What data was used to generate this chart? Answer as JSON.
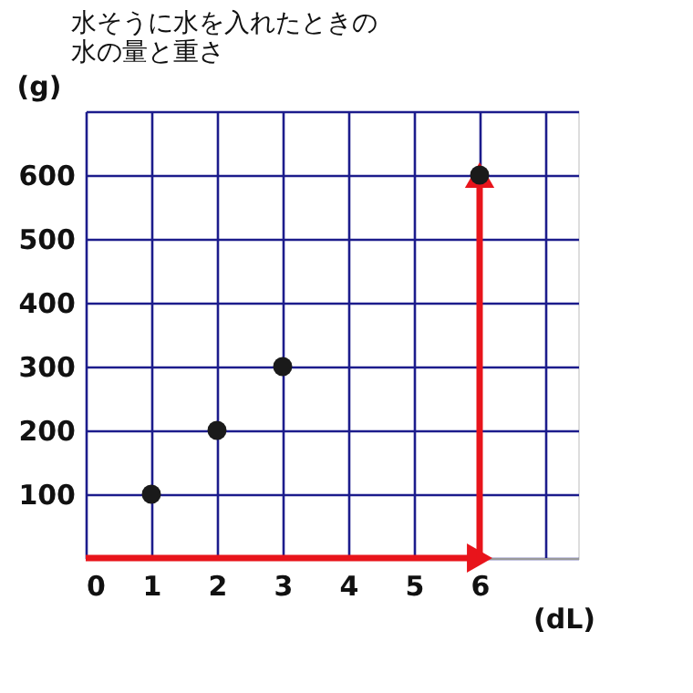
{
  "chart_data": {
    "type": "scatter",
    "title": "水そうに水を入れたときの水の量と重さ",
    "xlabel": "(dL)",
    "ylabel": "(g)",
    "series": [
      {
        "color": "#1a1a1a",
        "x": [
          1,
          2,
          3,
          6
        ],
        "values": [
          100,
          200,
          300,
          600
        ]
      },
      {
        "type": "line",
        "color": "#e8141b",
        "marker": "triangle",
        "x": [
          0,
          6
        ],
        "values": [
          0,
          0
        ]
      },
      {
        "type": "line",
        "color": "#e8141b",
        "marker": "triangle",
        "x": [
          6,
          6
        ],
        "values": [
          0,
          600
        ]
      }
    ],
    "marker": "circle",
    "grid": true,
    "xlim": [
      0,
      7.5
    ],
    "ylim": [
      0,
      700
    ],
    "xticks": [
      0,
      1,
      2,
      3,
      4,
      5,
      6,
      {
        "value": 7,
        "label": null
      }
    ],
    "yticks": [
      {
        "value": 0,
        "label": null
      },
      100,
      200,
      300,
      400,
      500,
      600,
      {
        "value": 700,
        "label": null
      }
    ]
  }
}
